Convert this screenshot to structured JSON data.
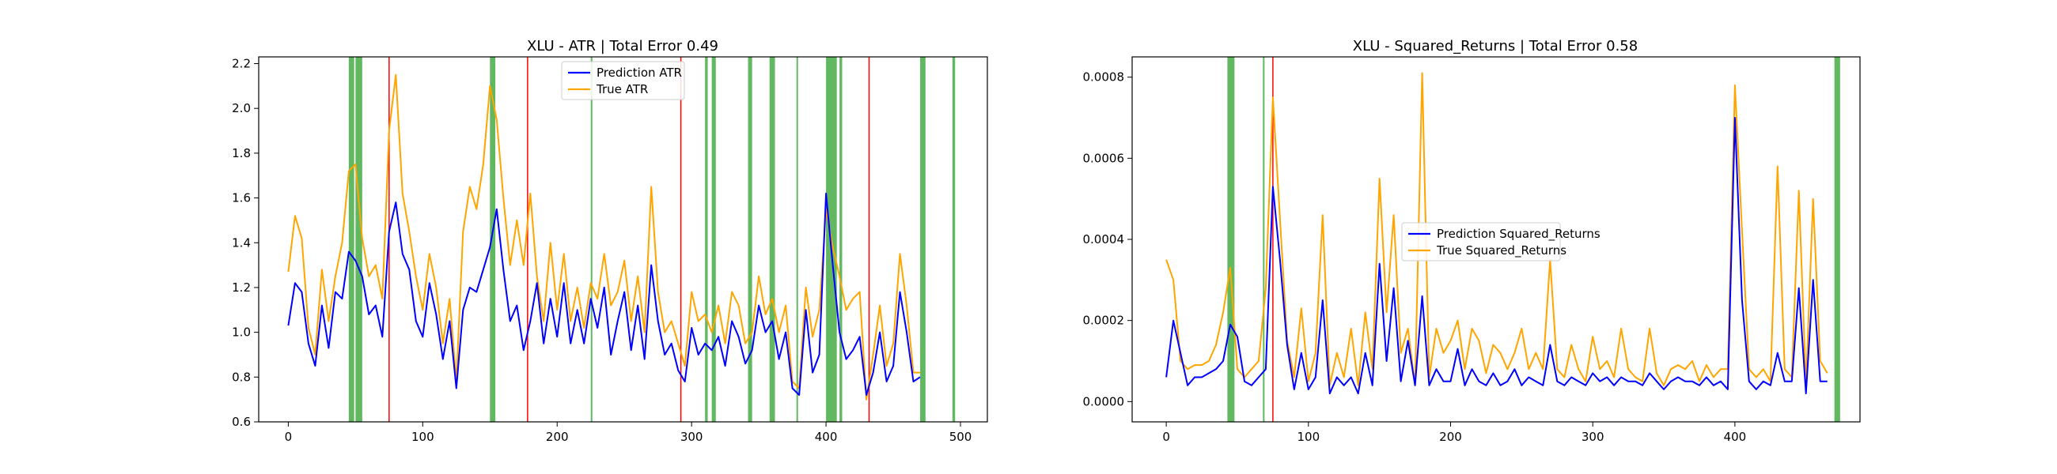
{
  "chart_data": [
    {
      "type": "line",
      "title": "XLU - ATR | Total Error 0.49",
      "xlim": [
        -22,
        520
      ],
      "ylim": [
        0.6,
        2.23
      ],
      "xticks": [
        0,
        100,
        200,
        300,
        400,
        500
      ],
      "yticks": [
        0.6,
        0.8,
        1.0,
        1.2,
        1.4,
        1.6,
        1.8,
        2.0,
        2.2
      ],
      "ytick_labels": [
        "0.6",
        "0.8",
        "1.0",
        "1.2",
        "1.4",
        "1.6",
        "1.8",
        "2.0",
        "2.2"
      ],
      "legend_position": "top-center",
      "green_bands": [
        [
          45,
          49
        ],
        [
          50,
          55
        ],
        [
          150,
          154
        ],
        [
          225,
          226
        ],
        [
          310,
          312
        ],
        [
          315,
          318
        ],
        [
          342,
          345
        ],
        [
          358,
          362
        ],
        [
          378,
          379
        ],
        [
          400,
          408
        ],
        [
          410,
          412
        ],
        [
          470,
          474
        ],
        [
          494,
          496
        ]
      ],
      "red_lines": [
        75,
        178,
        292,
        432
      ],
      "series": [
        {
          "name": "Prediction ATR",
          "color": "#0000ff",
          "x": [
            0,
            5,
            10,
            15,
            20,
            25,
            30,
            35,
            40,
            45,
            50,
            55,
            60,
            65,
            70,
            75,
            80,
            85,
            90,
            95,
            100,
            105,
            110,
            115,
            120,
            125,
            130,
            135,
            140,
            145,
            150,
            155,
            160,
            165,
            170,
            175,
            180,
            185,
            190,
            195,
            200,
            205,
            210,
            215,
            220,
            225,
            230,
            235,
            240,
            245,
            250,
            255,
            260,
            265,
            270,
            275,
            280,
            285,
            290,
            295,
            300,
            305,
            310,
            315,
            320,
            325,
            330,
            335,
            340,
            345,
            350,
            355,
            360,
            365,
            370,
            375,
            380,
            385,
            390,
            395,
            400,
            405,
            410,
            415,
            420,
            425,
            430,
            435,
            440,
            445,
            450,
            455,
            460,
            465,
            470
          ],
          "values": [
            1.03,
            1.22,
            1.18,
            0.95,
            0.85,
            1.12,
            0.93,
            1.18,
            1.15,
            1.36,
            1.32,
            1.25,
            1.08,
            1.12,
            0.98,
            1.45,
            1.58,
            1.35,
            1.28,
            1.05,
            0.98,
            1.22,
            1.08,
            0.88,
            1.05,
            0.75,
            1.1,
            1.2,
            1.18,
            1.28,
            1.38,
            1.55,
            1.28,
            1.05,
            1.12,
            0.92,
            1.05,
            1.22,
            0.95,
            1.15,
            0.98,
            1.22,
            0.95,
            1.1,
            0.95,
            1.15,
            1.02,
            1.2,
            0.9,
            1.05,
            1.18,
            0.92,
            1.12,
            0.88,
            1.3,
            1.05,
            0.9,
            0.95,
            0.83,
            0.78,
            1.02,
            0.9,
            0.95,
            0.92,
            0.98,
            0.85,
            1.05,
            0.98,
            0.86,
            0.92,
            1.12,
            1.0,
            1.05,
            0.88,
            1.0,
            0.75,
            0.72,
            1.1,
            0.82,
            0.9,
            1.62,
            1.3,
            1.0,
            0.88,
            0.92,
            0.98,
            0.72,
            0.82,
            1.0,
            0.78,
            0.85,
            1.18,
            1.0,
            0.78,
            0.8
          ]
        },
        {
          "name": "True ATR",
          "color": "#ffa500",
          "x": [
            0,
            5,
            10,
            15,
            20,
            25,
            30,
            35,
            40,
            45,
            50,
            55,
            60,
            65,
            70,
            75,
            80,
            85,
            90,
            95,
            100,
            105,
            110,
            115,
            120,
            125,
            130,
            135,
            140,
            145,
            150,
            155,
            160,
            165,
            170,
            175,
            180,
            185,
            190,
            195,
            200,
            205,
            210,
            215,
            220,
            225,
            230,
            235,
            240,
            245,
            250,
            255,
            260,
            265,
            270,
            275,
            280,
            285,
            290,
            295,
            300,
            305,
            310,
            315,
            320,
            325,
            330,
            335,
            340,
            345,
            350,
            355,
            360,
            365,
            370,
            375,
            380,
            385,
            390,
            395,
            400,
            405,
            410,
            415,
            420,
            425,
            430,
            435,
            440,
            445,
            450,
            455,
            460,
            465,
            470
          ],
          "values": [
            1.27,
            1.52,
            1.42,
            1.02,
            0.9,
            1.28,
            1.05,
            1.25,
            1.4,
            1.72,
            1.75,
            1.42,
            1.25,
            1.3,
            1.15,
            1.9,
            2.15,
            1.62,
            1.45,
            1.25,
            1.1,
            1.35,
            1.2,
            0.95,
            1.15,
            0.78,
            1.45,
            1.65,
            1.55,
            1.75,
            2.1,
            1.95,
            1.6,
            1.3,
            1.5,
            1.3,
            1.62,
            1.25,
            1.05,
            1.4,
            1.1,
            1.35,
            1.05,
            1.2,
            1.02,
            1.22,
            1.15,
            1.35,
            1.12,
            1.18,
            1.32,
            1.05,
            1.25,
            1.0,
            1.65,
            1.18,
            1.0,
            1.05,
            0.95,
            0.85,
            1.18,
            1.05,
            1.08,
            1.0,
            1.12,
            0.95,
            1.18,
            1.12,
            0.95,
            1.0,
            1.25,
            1.08,
            1.15,
            1.0,
            1.12,
            0.78,
            0.75,
            1.2,
            0.98,
            1.1,
            1.55,
            1.38,
            1.25,
            1.1,
            1.15,
            1.18,
            0.7,
            0.9,
            1.12,
            0.85,
            0.95,
            1.35,
            1.12,
            0.82,
            0.82
          ]
        }
      ]
    },
    {
      "type": "line",
      "title": "XLU - Squared_Returns | Total Error 0.58",
      "xlim": [
        -24,
        488
      ],
      "ylim": [
        -5e-05,
        0.00085
      ],
      "xticks": [
        0,
        100,
        200,
        300,
        400
      ],
      "yticks": [
        0.0,
        0.0002,
        0.0004,
        0.0006,
        0.0008
      ],
      "ytick_labels": [
        "0.0000",
        "0.0002",
        "0.0004",
        "0.0006",
        "0.0008"
      ],
      "legend_position": "center-left",
      "green_bands": [
        [
          43,
          48
        ],
        [
          68,
          69
        ],
        [
          470,
          474
        ]
      ],
      "red_lines": [
        75
      ],
      "series": [
        {
          "name": "Prediction Squared_Returns",
          "color": "#0000ff",
          "x": [
            0,
            5,
            10,
            15,
            20,
            25,
            30,
            35,
            40,
            45,
            50,
            55,
            60,
            65,
            70,
            75,
            80,
            85,
            90,
            95,
            100,
            105,
            110,
            115,
            120,
            125,
            130,
            135,
            140,
            145,
            150,
            155,
            160,
            165,
            170,
            175,
            180,
            185,
            190,
            195,
            200,
            205,
            210,
            215,
            220,
            225,
            230,
            235,
            240,
            245,
            250,
            255,
            260,
            265,
            270,
            275,
            280,
            285,
            290,
            295,
            300,
            305,
            310,
            315,
            320,
            325,
            330,
            335,
            340,
            345,
            350,
            355,
            360,
            365,
            370,
            375,
            380,
            385,
            390,
            395,
            400,
            405,
            410,
            415,
            420,
            425,
            430,
            435,
            440,
            445,
            450,
            455,
            460,
            465
          ],
          "values": [
            6e-05,
            0.0002,
            0.00012,
            4e-05,
            6e-05,
            6e-05,
            7e-05,
            8e-05,
            0.0001,
            0.00019,
            0.00016,
            5e-05,
            4e-05,
            6e-05,
            8e-05,
            0.00053,
            0.00035,
            0.00014,
            3e-05,
            0.00012,
            3e-05,
            6e-05,
            0.00025,
            2e-05,
            6e-05,
            4e-05,
            6e-05,
            2e-05,
            0.00012,
            4e-05,
            0.00034,
            0.0001,
            0.00028,
            5e-05,
            0.00015,
            4e-05,
            0.00026,
            4e-05,
            8e-05,
            5e-05,
            5e-05,
            0.00013,
            4e-05,
            8e-05,
            5e-05,
            4e-05,
            7e-05,
            4e-05,
            5e-05,
            8e-05,
            4e-05,
            6e-05,
            5e-05,
            4e-05,
            0.00014,
            5e-05,
            4e-05,
            6e-05,
            5e-05,
            4e-05,
            7e-05,
            5e-05,
            6e-05,
            4e-05,
            6e-05,
            5e-05,
            5e-05,
            4e-05,
            7e-05,
            5e-05,
            3e-05,
            5e-05,
            6e-05,
            5e-05,
            5e-05,
            4e-05,
            6e-05,
            4e-05,
            5e-05,
            3e-05,
            0.0007,
            0.00025,
            5e-05,
            3e-05,
            5e-05,
            4e-05,
            0.00012,
            5e-05,
            5e-05,
            0.00028,
            2e-05,
            0.0003,
            5e-05,
            5e-05
          ]
        },
        {
          "name": "True Squared_Returns",
          "color": "#ffa500",
          "x": [
            0,
            5,
            10,
            15,
            20,
            25,
            30,
            35,
            40,
            45,
            50,
            55,
            60,
            65,
            70,
            75,
            80,
            85,
            90,
            95,
            100,
            105,
            110,
            115,
            120,
            125,
            130,
            135,
            140,
            145,
            150,
            155,
            160,
            165,
            170,
            175,
            180,
            185,
            190,
            195,
            200,
            205,
            210,
            215,
            220,
            225,
            230,
            235,
            240,
            245,
            250,
            255,
            260,
            265,
            270,
            275,
            280,
            285,
            290,
            295,
            300,
            305,
            310,
            315,
            320,
            325,
            330,
            335,
            340,
            345,
            350,
            355,
            360,
            365,
            370,
            375,
            380,
            385,
            390,
            395,
            400,
            405,
            410,
            415,
            420,
            425,
            430,
            435,
            440,
            445,
            450,
            455,
            460,
            465
          ],
          "values": [
            0.00035,
            0.0003,
            0.0001,
            8e-05,
            9e-05,
            9e-05,
            0.0001,
            0.00014,
            0.00022,
            0.00033,
            8e-05,
            6e-05,
            8e-05,
            0.0001,
            0.00028,
            0.00075,
            0.00045,
            0.00015,
            6e-05,
            0.00023,
            5e-05,
            0.00012,
            0.00046,
            4e-05,
            0.00012,
            6e-05,
            0.00018,
            4e-05,
            0.00022,
            8e-05,
            0.00055,
            0.00022,
            0.00046,
            0.00012,
            0.00018,
            4e-05,
            0.00081,
            6e-05,
            0.00018,
            0.00012,
            0.00015,
            0.0002,
            8e-05,
            0.00018,
            0.00015,
            7e-05,
            0.00014,
            0.00012,
            8e-05,
            0.00012,
            0.00018,
            8e-05,
            0.00012,
            8e-05,
            0.00035,
            8e-05,
            6e-05,
            0.00014,
            8e-05,
            5e-05,
            0.00016,
            8e-05,
            0.0001,
            6e-05,
            0.00018,
            8e-05,
            6e-05,
            5e-05,
            0.00018,
            7e-05,
            4e-05,
            8e-05,
            9e-05,
            8e-05,
            0.0001,
            5e-05,
            9e-05,
            6e-05,
            8e-05,
            8e-05,
            0.00078,
            0.00042,
            8e-05,
            6e-05,
            8e-05,
            5e-05,
            0.00058,
            8e-05,
            6e-05,
            0.00052,
            4e-05,
            0.0005,
            0.0001,
            7e-05
          ]
        }
      ]
    }
  ]
}
